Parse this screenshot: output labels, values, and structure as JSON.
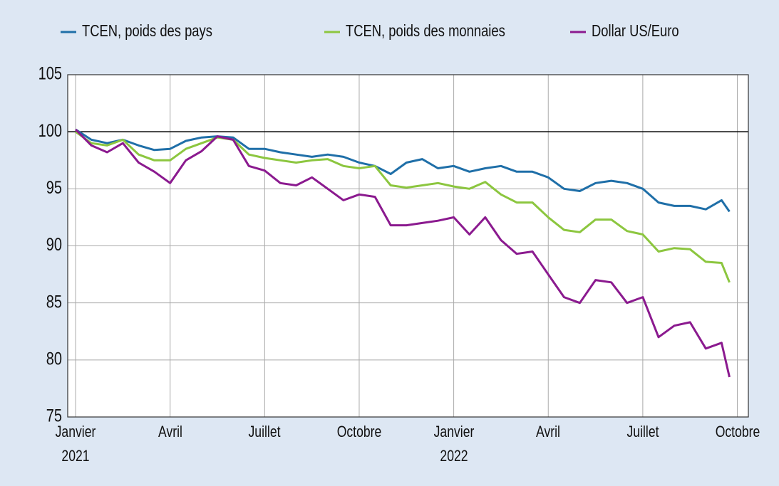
{
  "chart_data": {
    "type": "line",
    "x": [
      0,
      0.5,
      1,
      1.5,
      2,
      2.5,
      3,
      3.5,
      4,
      4.5,
      5,
      5.5,
      6,
      6.5,
      7,
      7.5,
      8,
      8.5,
      9,
      9.5,
      10,
      10.5,
      11,
      11.5,
      12,
      12.5,
      13,
      13.5,
      14,
      14.5,
      15,
      15.5,
      16,
      16.5,
      17,
      17.5,
      18,
      18.5,
      19,
      19.5,
      20,
      20.5,
      20.75
    ],
    "series": [
      {
        "name": "TCEN, poids des pays",
        "color": "#1f6fa8",
        "values": [
          100.2,
          99.3,
          99,
          99.3,
          98.8,
          98.4,
          98.5,
          99.2,
          99.5,
          99.6,
          99.5,
          98.5,
          98.5,
          98.2,
          98,
          97.8,
          98,
          97.8,
          97.3,
          97,
          96.3,
          97.3,
          97.6,
          96.8,
          97,
          96.5,
          96.8,
          97,
          96.5,
          96.5,
          96,
          95,
          94.8,
          95.5,
          95.7,
          95.5,
          95,
          93.8,
          93.5,
          93.5,
          93.2,
          94,
          93
        ]
      },
      {
        "name": "TCEN, poids des monnaies",
        "color": "#8cc63f",
        "values": [
          100,
          99,
          98.8,
          99.3,
          98,
          97.5,
          97.5,
          98.5,
          99,
          99.5,
          99.3,
          98,
          97.7,
          97.5,
          97.3,
          97.5,
          97.6,
          97,
          96.8,
          97,
          95.3,
          95.1,
          95.3,
          95.5,
          95.2,
          95,
          95.6,
          94.5,
          93.8,
          93.8,
          92.5,
          91.4,
          91.2,
          92.3,
          92.3,
          91.3,
          91,
          89.5,
          89.8,
          89.7,
          88.6,
          88.5,
          86.8
        ]
      },
      {
        "name": "Dollar US/Euro",
        "color": "#8b1a8f",
        "values": [
          100.2,
          98.8,
          98.2,
          99,
          97.3,
          96.5,
          95.5,
          97.5,
          98.3,
          99.6,
          99.3,
          97,
          96.6,
          95.5,
          95.3,
          96,
          95,
          94,
          94.5,
          94.3,
          91.8,
          91.8,
          92,
          92.2,
          92.5,
          91,
          92.5,
          90.5,
          89.3,
          89.5,
          87.5,
          85.5,
          85,
          87,
          86.8,
          85,
          85.5,
          82,
          83,
          83.3,
          81,
          81.5,
          78.5
        ]
      }
    ],
    "xlim": [
      -0.25,
      21.35
    ],
    "xticks": [
      {
        "value": 0,
        "label": "Janvier\n2021"
      },
      {
        "value": 3,
        "label": "Avril"
      },
      {
        "value": 6,
        "label": "Juillet"
      },
      {
        "value": 9,
        "label": "Octobre"
      },
      {
        "value": 12,
        "label": "Janvier\n2022"
      },
      {
        "value": 15,
        "label": "Avril"
      },
      {
        "value": 18,
        "label": "Juillet"
      },
      {
        "value": 21,
        "label": "Octobre"
      }
    ],
    "ylim": [
      75,
      105
    ],
    "yticks": [
      75,
      80,
      85,
      90,
      95,
      100,
      105
    ],
    "hline": 100,
    "grid": true
  }
}
